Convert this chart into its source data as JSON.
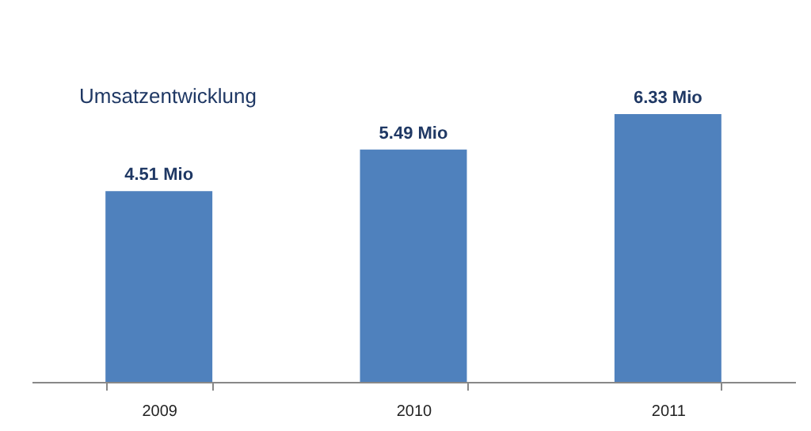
{
  "chart_data": {
    "type": "bar",
    "title": "Umsatzentwicklung",
    "categories": [
      "2009",
      "2010",
      "2011"
    ],
    "values": [
      4.51,
      5.49,
      6.33
    ],
    "value_labels": [
      "4.51 Mio",
      "5.49 Mio",
      "6.33 Mio"
    ],
    "color": "#4f81bd"
  }
}
